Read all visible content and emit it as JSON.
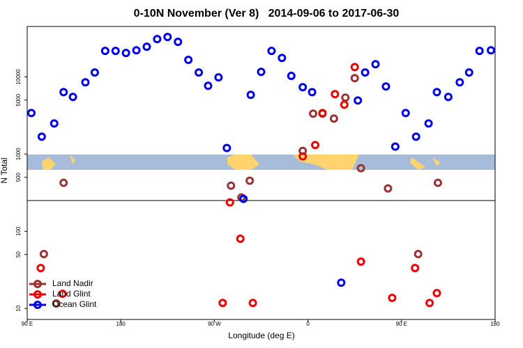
{
  "chart_data": {
    "type": "scatter",
    "title": "0-10N November (Ver 8)   2014-09-06 to 2017-06-30",
    "x_label": "Longitude (deg E)",
    "y_label": "N Total",
    "log_y": true,
    "legend": "bottom left",
    "hline": 250,
    "xlim": [
      90,
      540
    ],
    "ylim": [
      7.2,
      45000
    ],
    "xticks": [
      {
        "value": 90,
        "label": "90 E"
      },
      180,
      {
        "value": 270,
        "label": "90 W"
      },
      {
        "value": 360,
        "label": "0"
      },
      {
        "value": 450,
        "label": "90 E"
      },
      {
        "value": 540,
        "label": "180"
      }
    ],
    "yticks": [
      10,
      50,
      100,
      500,
      1000,
      5000,
      10000
    ],
    "series": [
      {
        "name": "Land Nadir",
        "color": "#993333",
        "x": [
          106,
          125,
          118,
          286,
          304,
          296,
          355,
          365,
          374,
          385,
          396,
          405,
          411,
          437,
          466,
          485
        ],
        "values": [
          50.7,
          424,
          11.6,
          390,
          452,
          274,
          1100,
          3340,
          3340,
          2880,
          5380,
          9640,
          656,
          359,
          50.7,
          424
        ]
      },
      {
        "name": "Land Glint",
        "color": "#ee0000",
        "x": [
          103,
          124,
          278,
          285,
          295,
          307,
          355,
          367,
          374,
          386,
          395,
          405,
          411,
          441,
          463,
          477,
          484
        ],
        "values": [
          33.4,
          15.5,
          11.8,
          237,
          80,
          11.8,
          935,
          1310,
          3400,
          5970,
          4360,
          13400,
          40.4,
          13.7,
          33.4,
          11.8,
          15.8
        ]
      },
      {
        "name": "Ocean Glint",
        "color": "#0000ee",
        "x": [
          94,
          104,
          116,
          125,
          134,
          146,
          155,
          165,
          175,
          185,
          195,
          205,
          215,
          225,
          235,
          245,
          255,
          264,
          274,
          282,
          298,
          305,
          315,
          325,
          335,
          344,
          355,
          364,
          392,
          408,
          415,
          425,
          435,
          444,
          454,
          464,
          476,
          484,
          495,
          506,
          515,
          525,
          536
        ],
        "values": [
          3400,
          1680,
          2490,
          6350,
          5500,
          8500,
          11400,
          21700,
          21700,
          20400,
          22100,
          24600,
          30900,
          32900,
          28400,
          16600,
          11400,
          7660,
          9850,
          1200,
          263,
          5850,
          11600,
          21700,
          17600,
          10300,
          7350,
          6350,
          21.6,
          4950,
          11400,
          14600,
          7500,
          1250,
          3400,
          1680,
          2490,
          6350,
          5500,
          8500,
          11400,
          21700,
          22100
        ]
      }
    ]
  }
}
